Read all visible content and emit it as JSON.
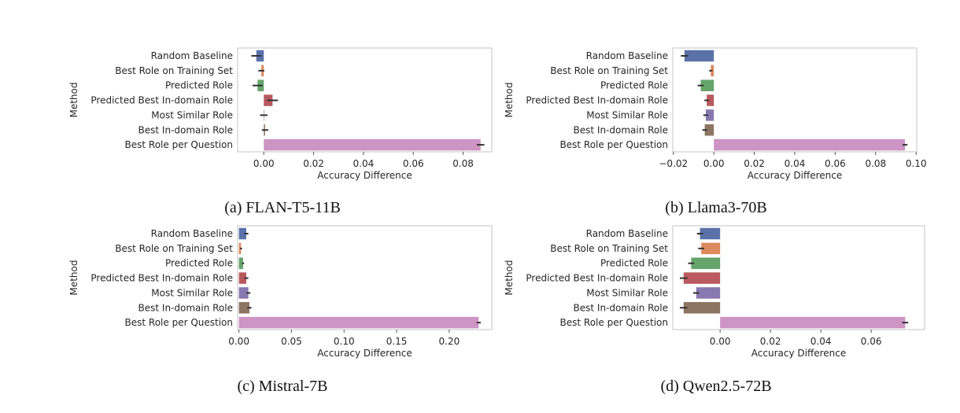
{
  "figure": {
    "captions": [
      "(a) FLAN-T5-11B",
      "(b) Llama3-70B",
      "(c) Mistral-7B",
      "(d) Qwen2.5-72B"
    ]
  },
  "colors": {
    "Random Baseline": "#5a72a9",
    "Best Role on Training Set": "#dc8a5e",
    "Predicted Role": "#65a46b",
    "Predicted Best In-domain Role": "#b95a5f",
    "Most Similar Role": "#8878b0",
    "Best In-domain Role": "#8c7562",
    "Best Role per Question": "#cd94c4"
  },
  "chart_data": [
    {
      "type": "bar",
      "orientation": "horizontal",
      "ylabel": "Method",
      "xlabel": "Accuracy Difference",
      "categories": [
        "Random Baseline",
        "Best Role on Training Set",
        "Predicted Role",
        "Predicted Best In-domain Role",
        "Most Similar Role",
        "Best In-domain Role",
        "Best Role per Question"
      ],
      "values": [
        -0.003,
        -0.001,
        -0.0025,
        0.0035,
        0.0,
        0.0005,
        0.087
      ],
      "error": [
        0.002,
        0.0012,
        0.002,
        0.0022,
        0.0015,
        0.0013,
        0.0015
      ],
      "xlim": [
        -0.0105,
        0.0915
      ],
      "xticks": [
        0.0,
        0.02,
        0.04,
        0.06,
        0.08
      ],
      "xtick_labels": [
        "0.00",
        "0.02",
        "0.04",
        "0.06",
        "0.08"
      ],
      "grid": false
    },
    {
      "type": "bar",
      "orientation": "horizontal",
      "ylabel": "Method",
      "xlabel": "Accuracy Difference",
      "categories": [
        "Random Baseline",
        "Best Role on Training Set",
        "Predicted Role",
        "Predicted Best In-domain Role",
        "Most Similar Role",
        "Best In-domain Role",
        "Best Role per Question"
      ],
      "values": [
        -0.0145,
        -0.0015,
        -0.0065,
        -0.0035,
        -0.004,
        -0.0045,
        0.0945
      ],
      "error": [
        0.0018,
        0.0008,
        0.0015,
        0.0012,
        0.0012,
        0.0012,
        0.0012
      ],
      "xlim": [
        -0.0203,
        0.1003
      ],
      "xticks": [
        -0.02,
        0.0,
        0.02,
        0.04,
        0.06,
        0.08,
        0.1
      ],
      "xtick_labels": [
        "−0.02",
        "0.00",
        "0.02",
        "0.04",
        "0.06",
        "0.08",
        "0.10"
      ],
      "grid": false
    },
    {
      "type": "bar",
      "orientation": "horizontal",
      "ylabel": "Method",
      "xlabel": "Accuracy Difference",
      "categories": [
        "Random Baseline",
        "Best Role on Training Set",
        "Predicted Role",
        "Predicted Best In-domain Role",
        "Most Similar Role",
        "Best In-domain Role",
        "Best Role per Question"
      ],
      "values": [
        0.007,
        0.002,
        0.004,
        0.007,
        0.009,
        0.01,
        0.228
      ],
      "error": [
        0.002,
        0.001,
        0.001,
        0.002,
        0.002,
        0.002,
        0.002
      ],
      "xlim": [
        -0.0012,
        0.2405
      ],
      "xticks": [
        0.0,
        0.05,
        0.1,
        0.15,
        0.2
      ],
      "xtick_labels": [
        "0.00",
        "0.05",
        "0.10",
        "0.15",
        "0.20"
      ],
      "grid": false
    },
    {
      "type": "bar",
      "orientation": "horizontal",
      "ylabel": "Method",
      "xlabel": "Accuracy Difference",
      "categories": [
        "Random Baseline",
        "Best Role on Training Set",
        "Predicted Role",
        "Predicted Best In-domain Role",
        "Most Similar Role",
        "Best In-domain Role",
        "Best Role per Question"
      ],
      "values": [
        -0.008,
        -0.0075,
        -0.0115,
        -0.0145,
        -0.0095,
        -0.0145,
        0.0735
      ],
      "error": [
        0.0012,
        0.0012,
        0.0012,
        0.0015,
        0.0012,
        0.0015,
        0.0012
      ],
      "xlim": [
        -0.0188,
        0.0812
      ],
      "xticks": [
        0.0,
        0.02,
        0.04,
        0.06
      ],
      "xtick_labels": [
        "0.00",
        "0.02",
        "0.04",
        "0.06"
      ],
      "grid": false
    }
  ]
}
